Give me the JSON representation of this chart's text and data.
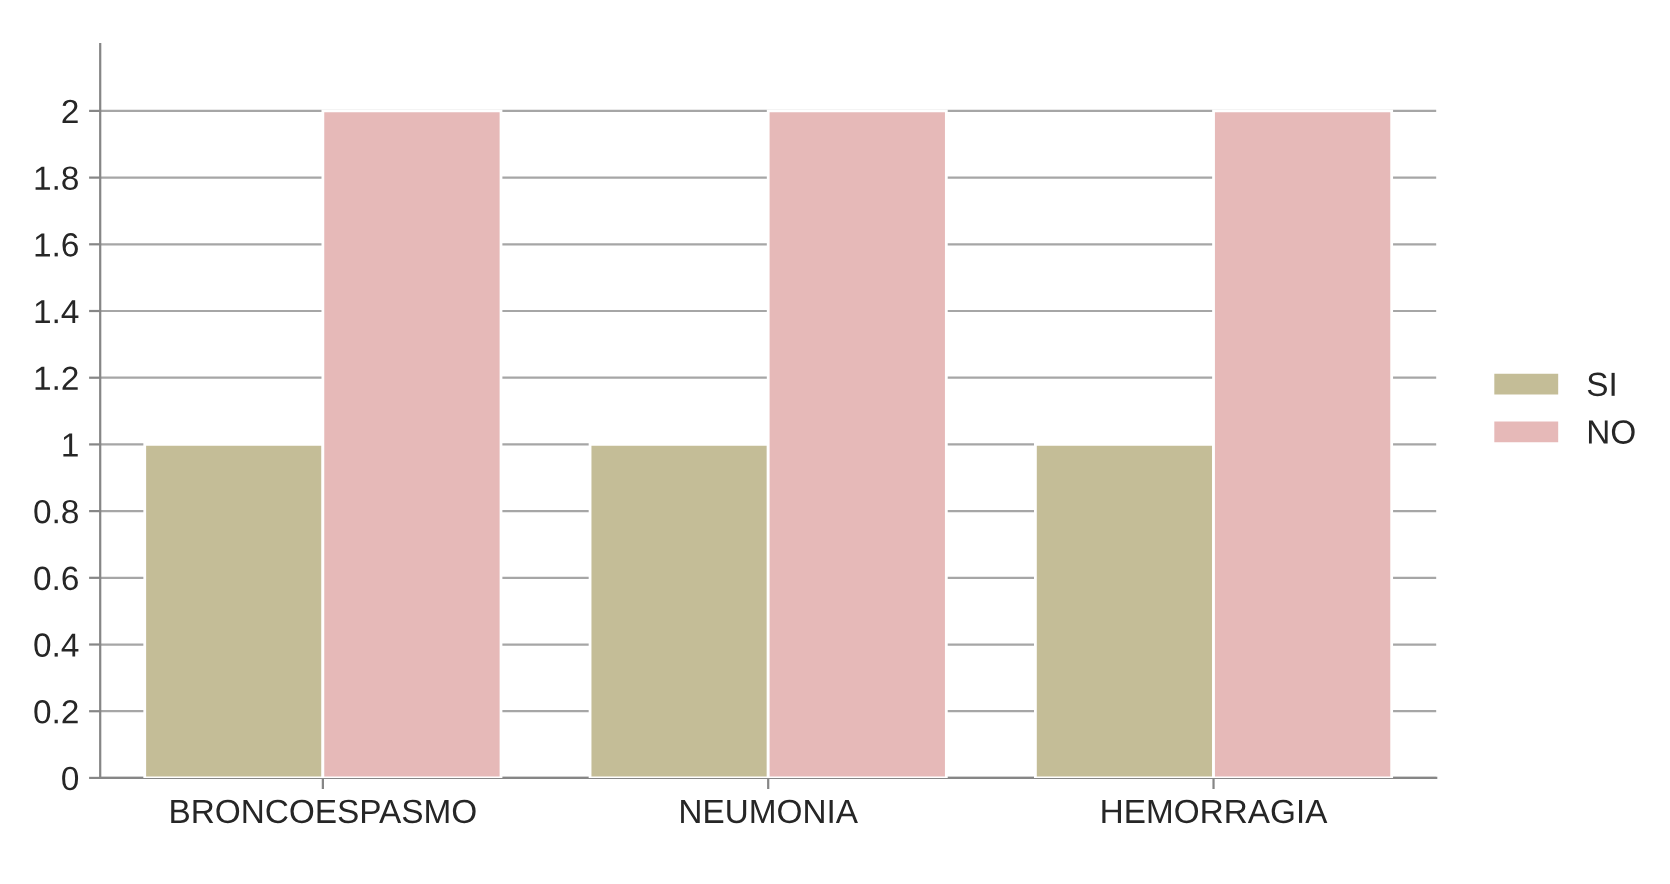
{
  "chart_data": {
    "type": "bar",
    "categories": [
      "BRONCOESPASMO",
      "NEUMONIA",
      "HEMORRAGIA"
    ],
    "series": [
      {
        "name": "SI",
        "color": "#c4bd97",
        "values": [
          1,
          1,
          1
        ]
      },
      {
        "name": "NO",
        "color": "#e6b9b8",
        "values": [
          2,
          2,
          2
        ]
      }
    ],
    "ylim": [
      0,
      2.2
    ],
    "yticks": [
      0,
      0.2,
      0.4,
      0.6,
      0.8,
      1,
      1.2,
      1.4,
      1.6,
      1.8,
      2
    ],
    "grid": "y",
    "legend": "right"
  }
}
